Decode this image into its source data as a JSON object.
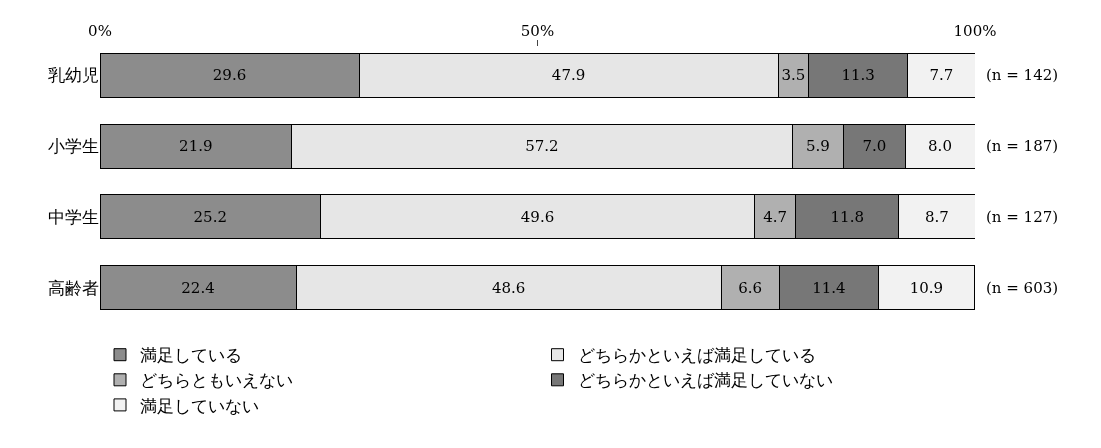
{
  "chart_data": {
    "type": "bar",
    "orientation": "horizontal",
    "stacked": true,
    "categories": [
      "乳幼児",
      "小学生",
      "中学生",
      "高齢者"
    ],
    "series": [
      {
        "name": "満足している",
        "color": "#8c8c8c",
        "values": [
          29.6,
          21.9,
          25.2,
          22.4
        ],
        "value_labels": [
          "29.6",
          "21.9",
          "25.2",
          "22.4"
        ]
      },
      {
        "name": "どちらかといえば満足している",
        "color": "#e6e6e6",
        "values": [
          47.9,
          57.2,
          49.6,
          48.6
        ],
        "value_labels": [
          "47.9",
          "57.2",
          "49.6",
          "48.6"
        ]
      },
      {
        "name": "どちらともいえない",
        "color": "#b0b0b0",
        "values": [
          3.5,
          5.9,
          4.7,
          6.6
        ],
        "value_labels": [
          "3.5",
          "5.9",
          "4.7",
          "6.6"
        ]
      },
      {
        "name": "どちらかといえば満足していない",
        "color": "#777777",
        "values": [
          11.3,
          7.0,
          11.8,
          11.4
        ],
        "value_labels": [
          "11.3",
          "7.0",
          "11.8",
          "11.4"
        ]
      },
      {
        "name": "満足していない",
        "color": "#f2f2f2",
        "values": [
          7.7,
          8.0,
          8.7,
          10.9
        ],
        "value_labels": [
          "7.7",
          "8.0",
          "8.7",
          "10.9"
        ]
      }
    ],
    "xlim": [
      0,
      100
    ],
    "xticks": [
      {
        "value": 0,
        "label": "0%"
      },
      {
        "value": 50,
        "label": "50%"
      },
      {
        "value": 100,
        "label": "100%"
      }
    ],
    "annotations": [
      "(n = 142)",
      "(n = 187)",
      "(n = 127)",
      "(n = 603)"
    ],
    "legend": "bottom",
    "grid": false
  }
}
